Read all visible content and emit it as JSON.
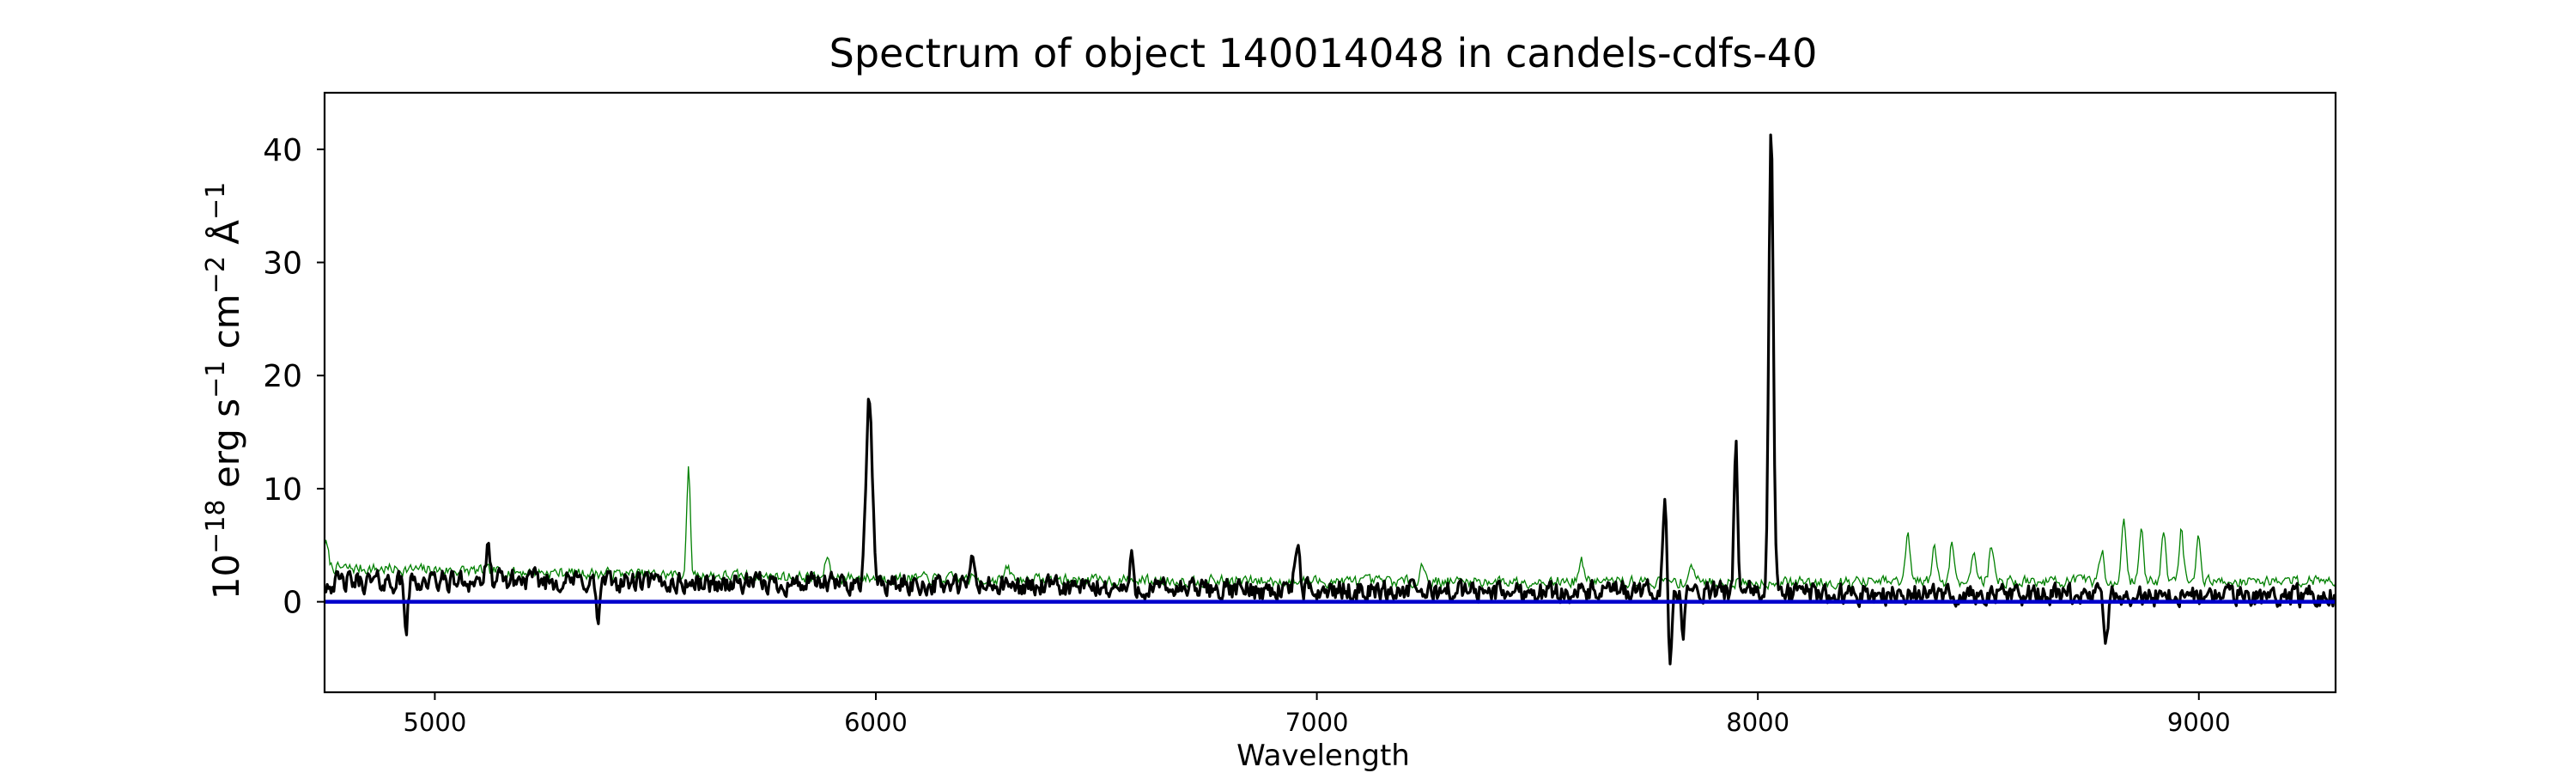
{
  "chart_data": {
    "type": "line",
    "title": "Spectrum of object 140014048 in candels-cdfs-40",
    "xlabel": "Wavelength",
    "ylabel_parts": [
      "10",
      "−18",
      " erg s",
      "−1",
      " cm",
      "−2",
      " Å",
      "−1"
    ],
    "xlim": [
      4750,
      9310
    ],
    "ylim": [
      -8,
      45
    ],
    "xticks": [
      5000,
      6000,
      7000,
      8000,
      9000
    ],
    "yticks": [
      0,
      10,
      20,
      30,
      40
    ],
    "grid": false,
    "legend": "none",
    "colors": {
      "flux": "#000000",
      "noise": "#008000",
      "zero": "#0000cc",
      "axes": "#000000"
    },
    "series": [
      {
        "role": "flux",
        "baseline": [
          [
            4750,
            1.7
          ],
          [
            5200,
            1.9
          ],
          [
            5600,
            1.6
          ],
          [
            6000,
            1.6
          ],
          [
            6500,
            1.2
          ],
          [
            7000,
            1.0
          ],
          [
            7500,
            0.9
          ],
          [
            8000,
            0.8
          ],
          [
            8500,
            0.6
          ],
          [
            9000,
            0.5
          ],
          [
            9310,
            0.5
          ]
        ],
        "noise_amp": 1.3,
        "features": [
          [
            5985,
            17.8,
            7
          ],
          [
            6955,
            5.3,
            5
          ],
          [
            7790,
            9.9,
            5
          ],
          [
            7800,
            -5.5,
            5
          ],
          [
            7830,
            -2.5,
            4
          ],
          [
            7950,
            14.2,
            4
          ],
          [
            8030,
            42.2,
            5
          ],
          [
            5120,
            4.5,
            4
          ],
          [
            6220,
            4.0,
            4
          ],
          [
            6580,
            3.6,
            4
          ],
          [
            4935,
            -2.3,
            4
          ],
          [
            5370,
            -1.8,
            4
          ],
          [
            8790,
            -3.5,
            5
          ]
        ]
      },
      {
        "role": "noise",
        "baseline": [
          [
            4750,
            3.0
          ],
          [
            5000,
            2.8
          ],
          [
            5500,
            2.4
          ],
          [
            6000,
            2.1
          ],
          [
            6500,
            1.9
          ],
          [
            7000,
            1.8
          ],
          [
            7500,
            1.8
          ],
          [
            8000,
            1.7
          ],
          [
            8500,
            1.8
          ],
          [
            9000,
            1.8
          ],
          [
            9310,
            1.9
          ]
        ],
        "noise_amp": 0.7,
        "features": [
          [
            4752,
            5.2,
            6
          ],
          [
            5575,
            11.8,
            4
          ],
          [
            5890,
            4.2,
            4
          ],
          [
            6300,
            2.9,
            6
          ],
          [
            7240,
            3.2,
            6
          ],
          [
            7600,
            3.5,
            6
          ],
          [
            7850,
            3.3,
            6
          ],
          [
            8340,
            5.8,
            5
          ],
          [
            8400,
            5.0,
            5
          ],
          [
            8440,
            5.2,
            5
          ],
          [
            8490,
            4.8,
            5
          ],
          [
            8530,
            5.1,
            5
          ],
          [
            8780,
            4.6,
            5
          ],
          [
            8830,
            7.0,
            5
          ],
          [
            8870,
            6.2,
            5
          ],
          [
            8920,
            6.6,
            5
          ],
          [
            8960,
            6.3,
            5
          ],
          [
            9000,
            5.8,
            5
          ]
        ]
      }
    ]
  }
}
